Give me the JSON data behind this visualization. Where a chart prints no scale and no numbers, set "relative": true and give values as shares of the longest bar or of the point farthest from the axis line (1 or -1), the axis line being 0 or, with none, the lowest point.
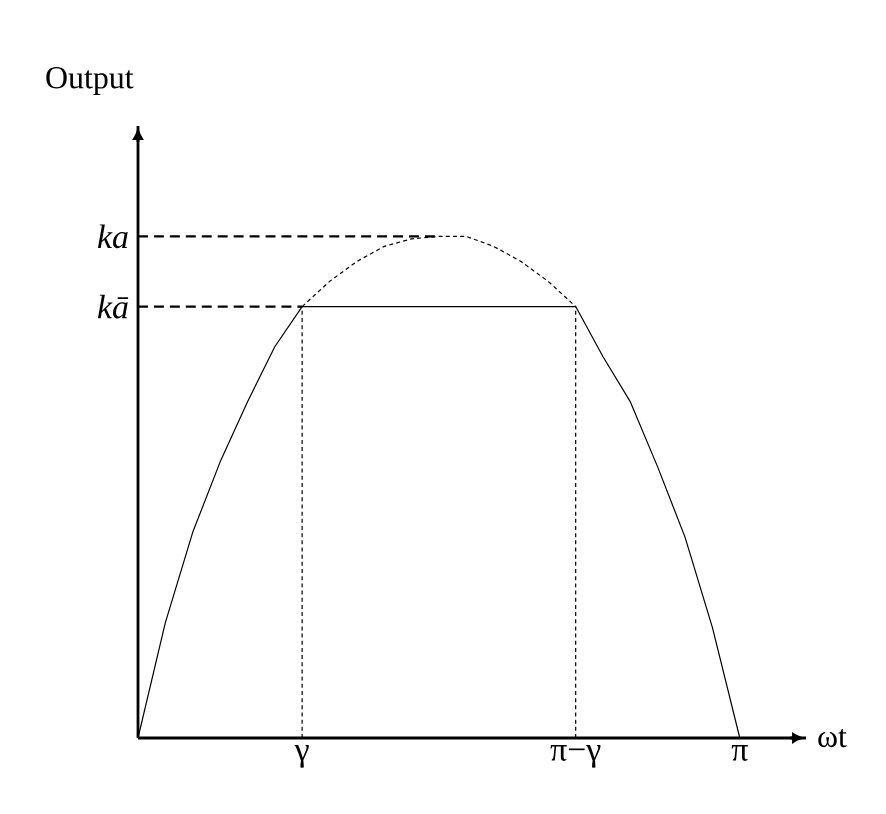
{
  "chart_data": {
    "type": "line",
    "relative": true,
    "xlabel": "ωt",
    "ylabel": "Output",
    "categories": [
      null,
      null,
      null,
      null,
      null,
      null,
      "γ",
      null,
      null,
      null,
      null,
      null,
      null,
      null,
      null,
      null,
      "π−γ",
      null,
      null,
      null,
      null,
      null,
      "π"
    ],
    "marker": "none",
    "series": [
      {
        "values": [
          0,
          0.23,
          0.41,
          0.55,
          0.67,
          0.78,
          0.86,
          0.86,
          0.86,
          0.86,
          0.86,
          0.86,
          0.86,
          0.86,
          0.86,
          0.86,
          0.86,
          0.76,
          0.67,
          0.54,
          0.4,
          0.22,
          0
        ],
        "color": "#000000",
        "line_style": "solid"
      },
      {
        "values": [
          null,
          null,
          null,
          null,
          null,
          null,
          0.86,
          0.91,
          0.95,
          0.98,
          0.995,
          1,
          1,
          0.98,
          0.95,
          0.91,
          0.86,
          null,
          null,
          null,
          null,
          null,
          null
        ],
        "color": "#000000",
        "line_style": "dotted"
      }
    ],
    "ref_lines": [
      {
        "axis": "y",
        "value": 1,
        "label": "ka",
        "line_style": "dashed"
      },
      {
        "axis": "y",
        "value": 0.86,
        "label": "kā",
        "line_style": "dashed"
      },
      {
        "axis": "x",
        "value": "γ",
        "line_style": "dotted"
      },
      {
        "axis": "x",
        "value": "π−γ",
        "line_style": "dotted"
      }
    ]
  }
}
